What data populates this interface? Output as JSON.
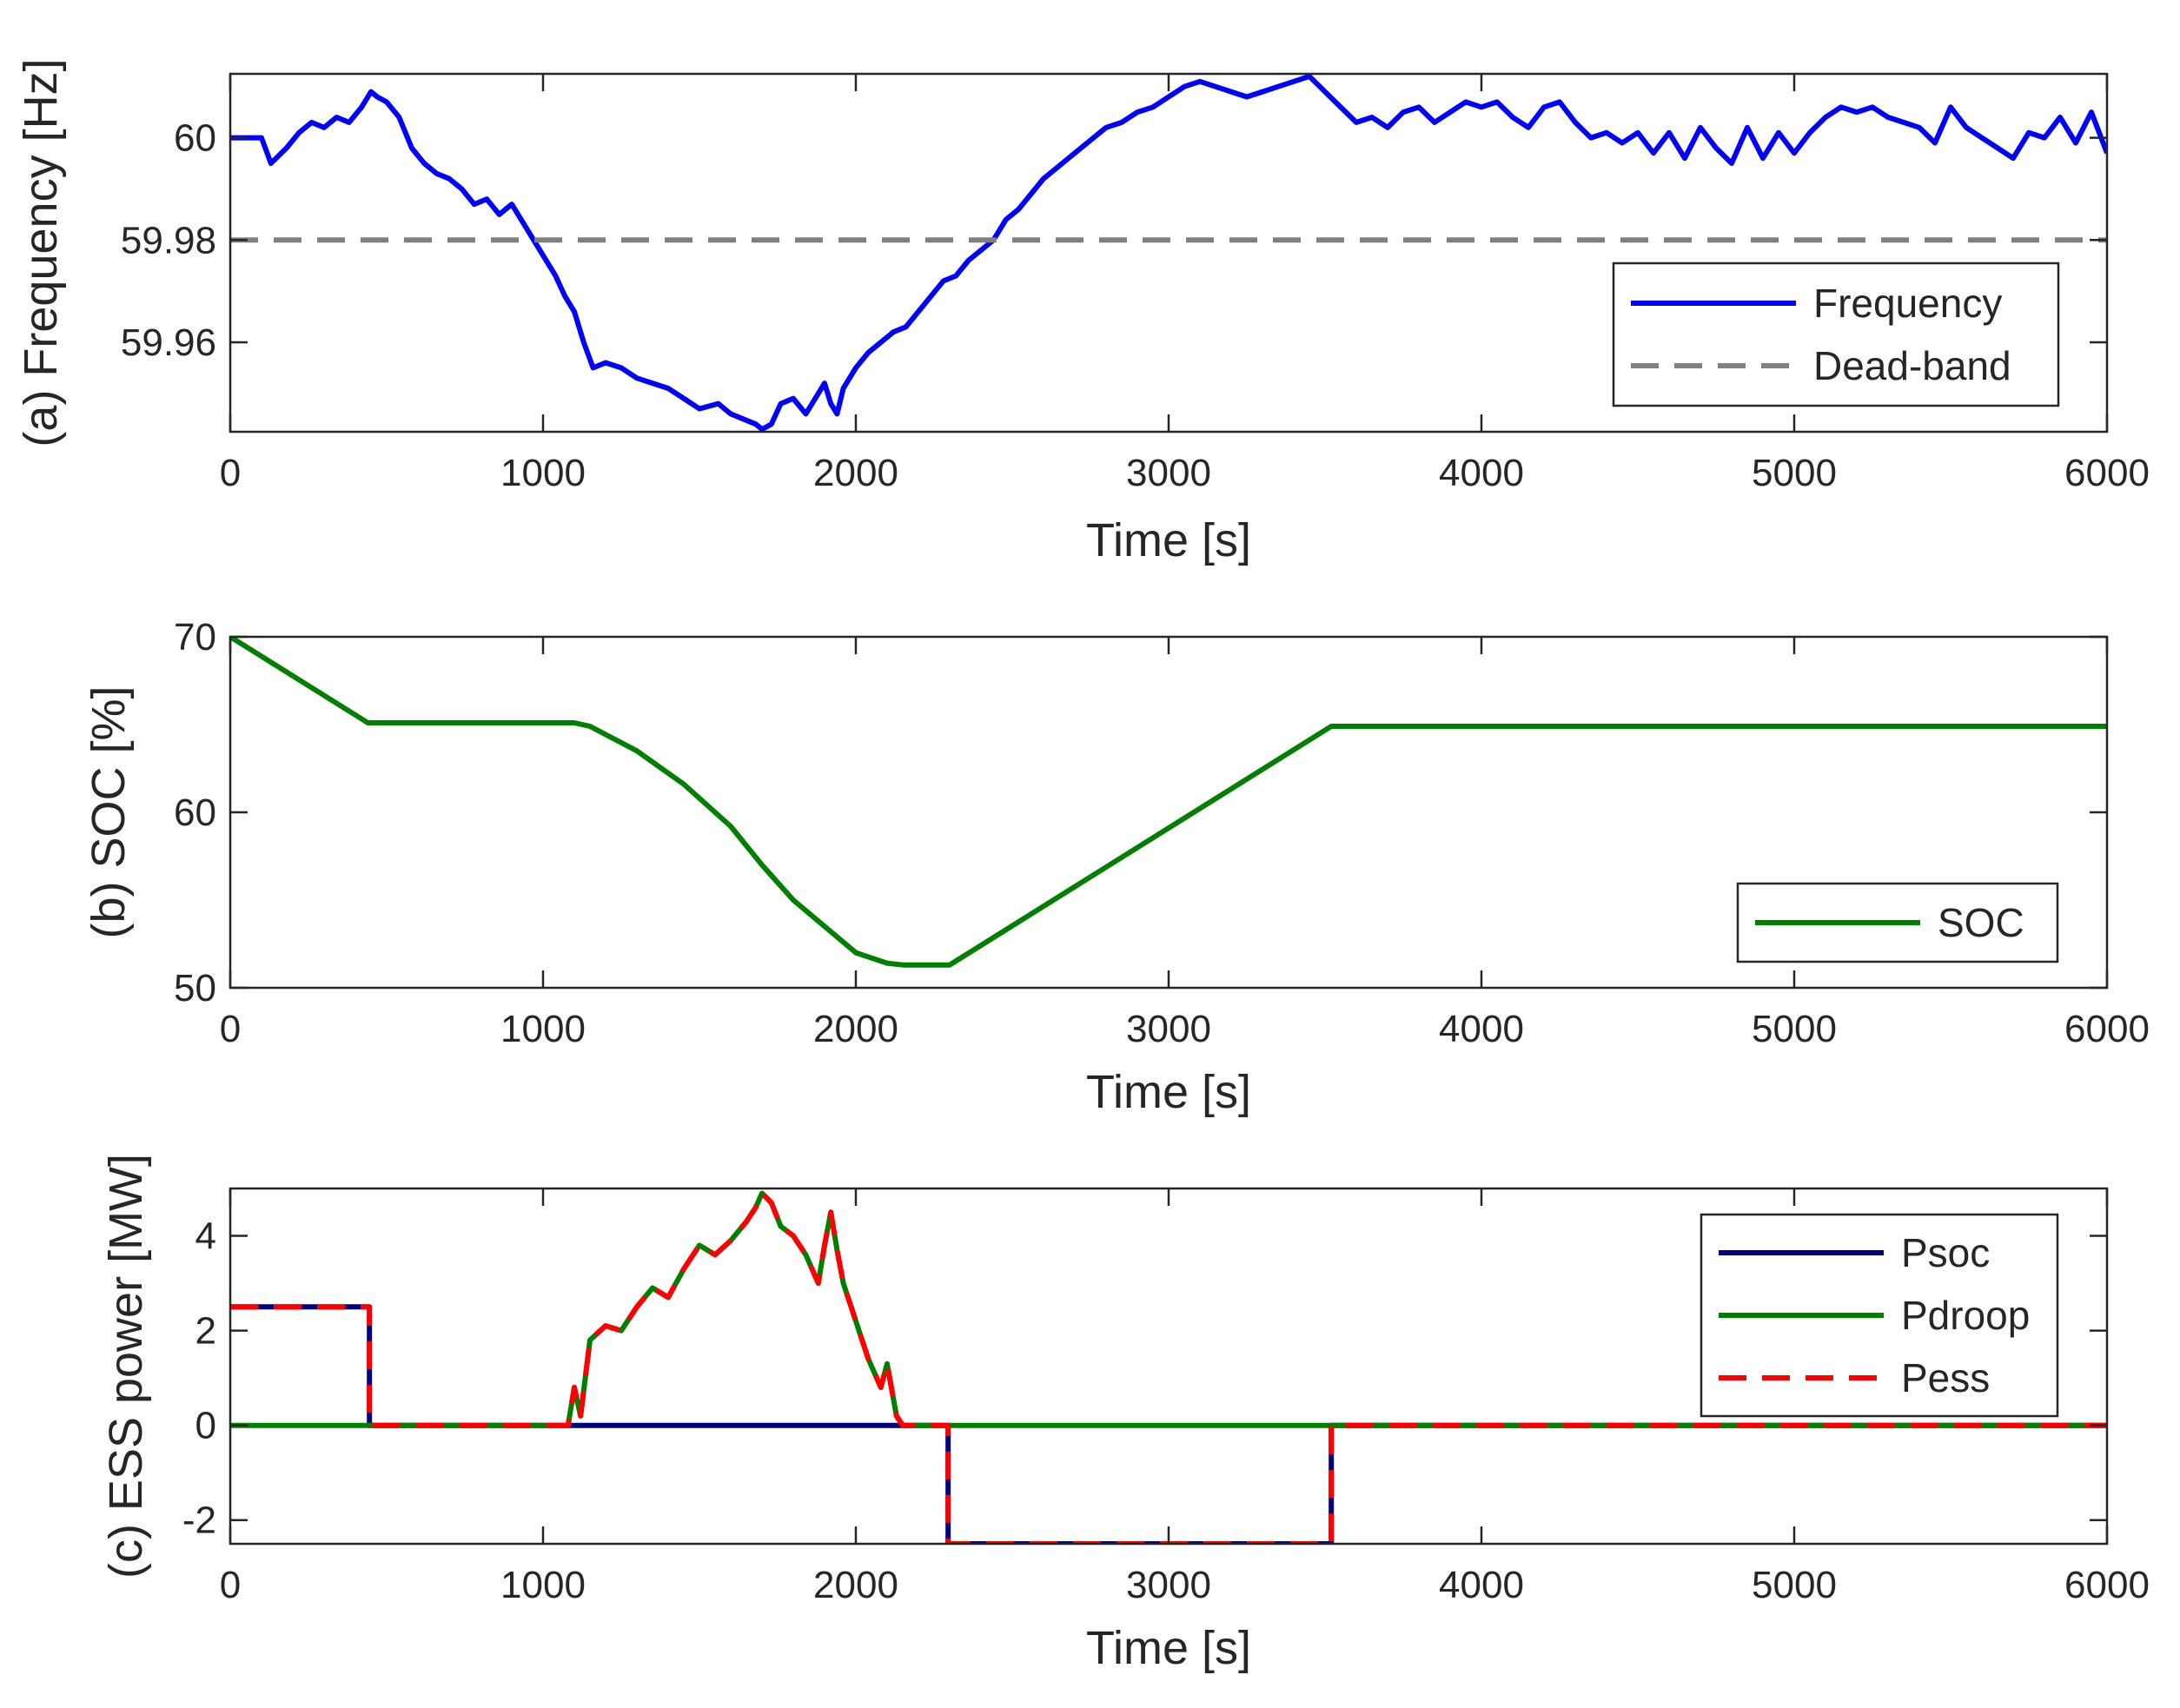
{
  "chart_data": [
    {
      "type": "line",
      "panel": "a",
      "xlabel": "Time [s]",
      "ylabel": "(a) Frequency [Hz]",
      "xlim": [
        0,
        6000
      ],
      "ylim": [
        59.9425,
        60.0125
      ],
      "xticks": [
        0,
        1000,
        2000,
        3000,
        4000,
        5000,
        6000
      ],
      "yticks": [
        59.96,
        59.98,
        60
      ],
      "ytick_labels": [
        "59.96",
        "59.98",
        "60"
      ],
      "legend_position": "bottom-right",
      "series": [
        {
          "name": "Frequency",
          "color": "#0000FF",
          "style": "solid",
          "x": [
            0,
            100,
            130,
            180,
            220,
            260,
            300,
            340,
            380,
            420,
            450,
            470,
            500,
            540,
            580,
            620,
            660,
            700,
            740,
            780,
            820,
            860,
            900,
            940,
            980,
            1010,
            1040,
            1070,
            1100,
            1130,
            1160,
            1200,
            1250,
            1300,
            1350,
            1400,
            1450,
            1500,
            1560,
            1600,
            1640,
            1680,
            1700,
            1730,
            1760,
            1800,
            1840,
            1880,
            1900,
            1920,
            1940,
            1960,
            2000,
            2040,
            2080,
            2120,
            2160,
            2200,
            2240,
            2280,
            2320,
            2360,
            2400,
            2440,
            2480,
            2520,
            2560,
            2600,
            2640,
            2680,
            2720,
            2760,
            2800,
            2850,
            2900,
            2950,
            3000,
            3050,
            3100,
            3150,
            3200,
            3250,
            3300,
            3350,
            3400,
            3450,
            3500,
            3550,
            3600,
            3650,
            3700,
            3750,
            3800,
            3850,
            3900,
            3950,
            4000,
            4050,
            4100,
            4150,
            4200,
            4250,
            4300,
            4350,
            4400,
            4450,
            4500,
            4550,
            4600,
            4650,
            4700,
            4750,
            4800,
            4850,
            4900,
            4950,
            5000,
            5050,
            5100,
            5150,
            5200,
            5250,
            5300,
            5350,
            5400,
            5450,
            5500,
            5550,
            5600,
            5650,
            5700,
            5750,
            5800,
            5850,
            5900,
            5950,
            6000
          ],
          "y": [
            60.0,
            60.0,
            59.995,
            59.998,
            60.001,
            60.003,
            60.002,
            60.004,
            60.003,
            60.006,
            60.009,
            60.008,
            60.007,
            60.004,
            59.998,
            59.995,
            59.993,
            59.992,
            59.99,
            59.987,
            59.988,
            59.985,
            59.987,
            59.983,
            59.979,
            59.976,
            59.973,
            59.969,
            59.966,
            59.96,
            59.955,
            59.956,
            59.955,
            59.953,
            59.952,
            59.951,
            59.949,
            59.947,
            59.948,
            59.946,
            59.945,
            59.944,
            59.943,
            59.944,
            59.948,
            59.949,
            59.946,
            59.95,
            59.952,
            59.948,
            59.946,
            59.951,
            59.955,
            59.958,
            59.96,
            59.962,
            59.963,
            59.966,
            59.969,
            59.972,
            59.973,
            59.976,
            59.978,
            59.98,
            59.984,
            59.986,
            59.989,
            59.992,
            59.994,
            59.996,
            59.998,
            60.0,
            60.002,
            60.003,
            60.005,
            60.006,
            60.008,
            60.01,
            60.011,
            60.01,
            60.009,
            60.008,
            60.009,
            60.01,
            60.011,
            60.012,
            60.009,
            60.006,
            60.003,
            60.004,
            60.002,
            60.005,
            60.006,
            60.003,
            60.005,
            60.007,
            60.006,
            60.007,
            60.004,
            60.002,
            60.006,
            60.007,
            60.003,
            60.0,
            60.001,
            59.999,
            60.001,
            59.997,
            60.001,
            59.996,
            60.002,
            59.998,
            59.995,
            60.002,
            59.996,
            60.001,
            59.997,
            60.001,
            60.004,
            60.006,
            60.005,
            60.006,
            60.004,
            60.003,
            60.002,
            59.999,
            60.006,
            60.002,
            60.0,
            59.998,
            59.996,
            60.001,
            60.0,
            60.004,
            59.999,
            60.005,
            59.997
          ]
        },
        {
          "name": "Dead-band",
          "color": "#808080",
          "style": "dashed",
          "x": [
            0,
            6000
          ],
          "y": [
            59.98,
            59.98
          ]
        }
      ]
    },
    {
      "type": "line",
      "panel": "b",
      "xlabel": "Time [s]",
      "ylabel": "(b) SOC [%]",
      "xlim": [
        0,
        6000
      ],
      "ylim": [
        50,
        70
      ],
      "xticks": [
        0,
        1000,
        2000,
        3000,
        4000,
        5000,
        6000
      ],
      "yticks": [
        50,
        60,
        70
      ],
      "ytick_labels": [
        "50",
        "60",
        "70"
      ],
      "legend_position": "bottom-right",
      "series": [
        {
          "name": "SOC",
          "color": "#007F00",
          "style": "solid",
          "x": [
            0,
            440,
            1100,
            1150,
            1300,
            1450,
            1600,
            1700,
            1800,
            1900,
            2000,
            2100,
            2150,
            2300,
            3520,
            6000
          ],
          "y": [
            70,
            65.1,
            65.1,
            64.9,
            63.5,
            61.6,
            59.2,
            57.0,
            55.0,
            53.5,
            52.0,
            51.4,
            51.3,
            51.3,
            64.9,
            64.9
          ]
        }
      ]
    },
    {
      "type": "line",
      "panel": "c",
      "xlabel": "Time [s]",
      "ylabel": "(c) ESS power [MW]",
      "xlim": [
        0,
        6000
      ],
      "ylim": [
        -2.5,
        5
      ],
      "xticks": [
        0,
        1000,
        2000,
        3000,
        4000,
        5000,
        6000
      ],
      "yticks": [
        -2,
        0,
        2,
        4
      ],
      "ytick_labels": [
        "-2",
        "0",
        "2",
        "4"
      ],
      "legend_position": "top-right",
      "series": [
        {
          "name": "Psoc",
          "color": "#00007F",
          "style": "solid",
          "x": [
            0,
            445,
            445,
            2295,
            2295,
            3520,
            3520,
            6000
          ],
          "y": [
            2.5,
            2.5,
            0,
            0,
            -2.5,
            -2.5,
            0,
            0
          ]
        },
        {
          "name": "Pdroop",
          "color": "#007F00",
          "style": "solid",
          "x": [
            0,
            1080,
            1100,
            1120,
            1150,
            1200,
            1250,
            1300,
            1350,
            1400,
            1450,
            1500,
            1550,
            1600,
            1650,
            1680,
            1700,
            1730,
            1760,
            1800,
            1840,
            1880,
            1900,
            1920,
            1940,
            1960,
            2000,
            2040,
            2080,
            2100,
            2130,
            2150,
            6000
          ],
          "y": [
            0,
            0,
            0.8,
            0.2,
            1.8,
            2.1,
            2.0,
            2.5,
            2.9,
            2.7,
            3.3,
            3.8,
            3.6,
            3.9,
            4.3,
            4.6,
            4.9,
            4.7,
            4.2,
            4.0,
            3.6,
            3.0,
            3.8,
            4.5,
            3.7,
            3.0,
            2.2,
            1.4,
            0.8,
            1.3,
            0.2,
            0,
            0
          ]
        },
        {
          "name": "Pess",
          "color": "#FF0000",
          "style": "dashed",
          "x": [
            0,
            445,
            445,
            1080,
            1100,
            1120,
            1150,
            1200,
            1250,
            1300,
            1350,
            1400,
            1450,
            1500,
            1550,
            1600,
            1650,
            1680,
            1700,
            1730,
            1760,
            1800,
            1840,
            1880,
            1900,
            1920,
            1940,
            1960,
            2000,
            2040,
            2080,
            2100,
            2130,
            2150,
            2295,
            2295,
            3520,
            3520,
            6000
          ],
          "y": [
            2.5,
            2.5,
            0,
            0,
            0.8,
            0.2,
            1.8,
            2.1,
            2.0,
            2.5,
            2.9,
            2.7,
            3.3,
            3.8,
            3.6,
            3.9,
            4.3,
            4.6,
            4.9,
            4.7,
            4.2,
            4.0,
            3.6,
            3.0,
            3.8,
            4.5,
            3.7,
            3.0,
            2.2,
            1.4,
            0.8,
            1.3,
            0.2,
            0,
            0,
            -2.5,
            -2.5,
            0,
            0
          ]
        }
      ]
    }
  ]
}
